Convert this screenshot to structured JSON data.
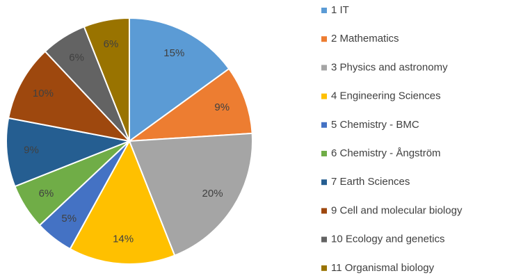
{
  "chart_data": {
    "type": "pie",
    "categories": [
      "1 IT",
      "2 Mathematics",
      "3 Physics and astronomy",
      "4 Engineering Sciences",
      "5 Chemistry - BMC",
      "6 Chemistry - Ångström",
      "7 Earth Sciences",
      "9 Cell and molecular biology",
      "10 Ecology and genetics",
      "11 Organismal biology"
    ],
    "values": [
      15,
      9,
      20,
      14,
      5,
      6,
      9,
      10,
      6,
      6
    ],
    "value_labels": [
      "15%",
      "9%",
      "20%",
      "14%",
      "5%",
      "6%",
      "9%",
      "10%",
      "6%",
      "6%"
    ],
    "colors": [
      "#5b9bd5",
      "#ed7d31",
      "#a5a5a5",
      "#ffc000",
      "#4472c4",
      "#70ad47",
      "#255e91",
      "#9e480e",
      "#636363",
      "#997300"
    ],
    "legend": "right"
  }
}
